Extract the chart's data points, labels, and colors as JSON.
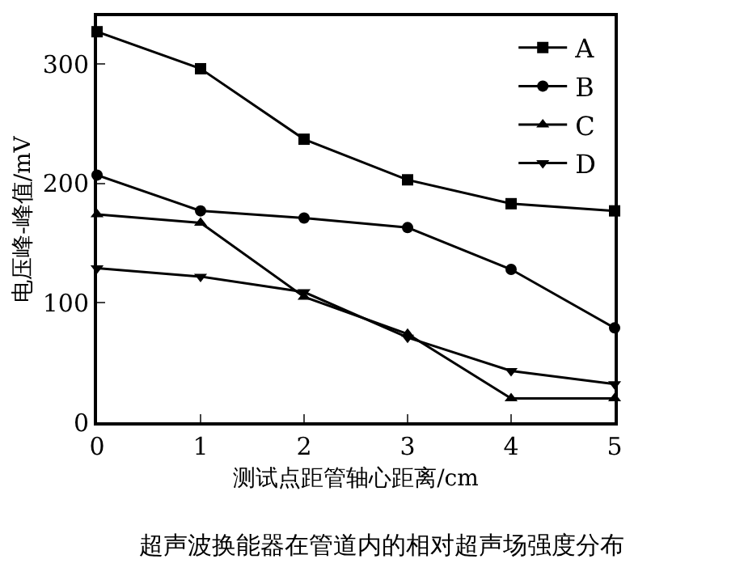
{
  "chart_data": {
    "type": "line",
    "xlabel": "测试点距管轴心距离/cm",
    "ylabel": "电压峰-峰值/mV",
    "x": [
      0,
      1,
      2,
      3,
      4,
      5
    ],
    "series": [
      {
        "name": "A",
        "color": "#000000",
        "marker": "square",
        "values": [
          327,
          296,
          237,
          203,
          183,
          177
        ]
      },
      {
        "name": "B",
        "color": "#000000",
        "marker": "circle",
        "values": [
          207,
          177,
          171,
          163,
          128,
          79
        ]
      },
      {
        "name": "C",
        "color": "#000000",
        "marker": "triangle",
        "values": [
          174,
          167,
          105,
          74,
          20,
          20
        ]
      },
      {
        "name": "D",
        "color": "#000000",
        "marker": "triangle-down",
        "values": [
          129,
          122,
          109,
          71,
          43,
          32
        ]
      }
    ],
    "xlim": [
      0,
      5
    ],
    "xticks": [
      0,
      1,
      2,
      3,
      4,
      5
    ],
    "ylim": [
      0,
      340
    ],
    "yticks": [
      0,
      100,
      200,
      300
    ],
    "legend": "top right",
    "line_style": "solid",
    "annotations": [
      "超声波换能器在管道内的相对超声场强度分布"
    ]
  }
}
